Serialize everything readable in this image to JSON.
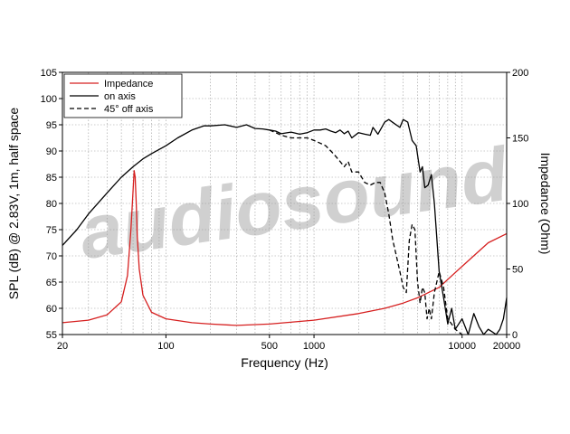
{
  "chart_data": {
    "type": "line",
    "xlabel": "Frequency (Hz)",
    "ylabel_left": "SPL (dB) @ 2.83V, 1m, half space",
    "ylabel_right": "Impedance (Ohm)",
    "x_scale": "log",
    "xlim": [
      20,
      20000
    ],
    "ylim_left": [
      55,
      105
    ],
    "ylim_right": [
      0,
      200
    ],
    "x_ticks": [
      20,
      100,
      500,
      1000,
      10000,
      20000
    ],
    "x_tick_labels": [
      "20",
      "100",
      "500",
      "1000",
      "10000",
      "20000"
    ],
    "y_left_ticks": [
      55,
      60,
      65,
      70,
      75,
      80,
      85,
      90,
      95,
      100,
      105
    ],
    "y_right_ticks": [
      0,
      50,
      100,
      150,
      200
    ],
    "grid": true,
    "legend_position": "top-left",
    "watermark": "audiosound",
    "series": [
      {
        "name": "Impedance",
        "axis": "right",
        "color": "#d62020",
        "style": "solid",
        "x": [
          20,
          30,
          40,
          50,
          55,
          58,
          60,
          61,
          62,
          63,
          64,
          66,
          70,
          80,
          100,
          150,
          200,
          300,
          500,
          1000,
          2000,
          3000,
          4000,
          5000,
          7000,
          10000,
          15000,
          20000
        ],
        "y": [
          9,
          11,
          15,
          25,
          45,
          80,
          110,
          125,
          120,
          100,
          75,
          50,
          30,
          17,
          12,
          9,
          8,
          7,
          8,
          11,
          16,
          20,
          24,
          28,
          36,
          52,
          70,
          77
        ]
      },
      {
        "name": "on axis",
        "axis": "left",
        "color": "#000000",
        "style": "solid",
        "x": [
          20,
          25,
          30,
          40,
          50,
          60,
          70,
          80,
          100,
          120,
          150,
          180,
          200,
          250,
          300,
          350,
          400,
          450,
          500,
          550,
          600,
          700,
          800,
          900,
          1000,
          1100,
          1200,
          1300,
          1400,
          1500,
          1600,
          1700,
          1800,
          2000,
          2200,
          2400,
          2500,
          2700,
          3000,
          3200,
          3500,
          3800,
          4000,
          4300,
          4600,
          4900,
          5200,
          5400,
          5600,
          5900,
          6200,
          6500,
          7000,
          7500,
          8000,
          8500,
          9000,
          10000,
          11000,
          12000,
          13000,
          14000,
          15000,
          16000,
          17000,
          18000,
          19000,
          20000
        ],
        "y": [
          72,
          75,
          78,
          82,
          85,
          87,
          88.5,
          89.5,
          91,
          92.5,
          94,
          94.8,
          94.8,
          95,
          94.5,
          95,
          94.3,
          94.2,
          94,
          93.8,
          93.3,
          93.6,
          93.2,
          93.5,
          94,
          94,
          94.2,
          93.8,
          93.5,
          94,
          93.3,
          93.8,
          92.5,
          93.5,
          93.2,
          93,
          94.5,
          93.2,
          95.5,
          96,
          95.2,
          94.5,
          96,
          95.5,
          92,
          91,
          86,
          87,
          83,
          83.5,
          85.5,
          80,
          67,
          62,
          57,
          60,
          56,
          58,
          55,
          59,
          56.5,
          55,
          56,
          55.5,
          55,
          56,
          58,
          62
        ]
      },
      {
        "name": "45° off axis",
        "axis": "left",
        "color": "#000000",
        "style": "dashed",
        "x": [
          500,
          550,
          600,
          700,
          800,
          900,
          1000,
          1100,
          1200,
          1300,
          1400,
          1500,
          1600,
          1700,
          1800,
          2000,
          2200,
          2400,
          2600,
          2800,
          3000,
          3200,
          3400,
          3600,
          3800,
          4000,
          4200,
          4400,
          4600,
          4800,
          5000,
          5200,
          5400,
          5600,
          5800,
          6000,
          6200,
          6500,
          7000,
          7500,
          8000,
          8500,
          9000,
          10000
        ],
        "y": [
          94,
          93.5,
          93,
          92.5,
          92.5,
          92.5,
          92,
          91.5,
          91,
          90,
          89,
          88,
          87,
          88,
          86,
          86,
          84,
          83.5,
          84,
          84,
          82,
          78,
          73,
          70,
          67,
          64,
          63,
          73,
          76,
          75,
          65,
          61,
          64,
          63,
          58,
          60,
          58,
          63,
          67,
          64,
          58,
          57,
          56,
          55
        ]
      }
    ]
  }
}
